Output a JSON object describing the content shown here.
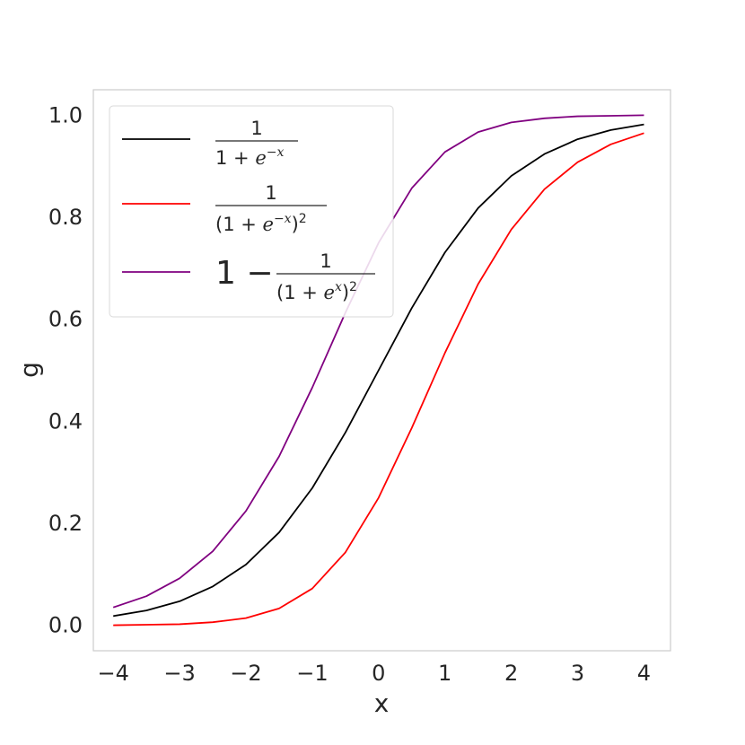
{
  "chart_data": {
    "type": "line",
    "xlabel": "x",
    "ylabel": "g",
    "xlim": [
      -4.3,
      4.4
    ],
    "ylim": [
      -0.05,
      1.05
    ],
    "xticks": [
      -4,
      -3,
      -2,
      -1,
      0,
      1,
      2,
      3,
      4
    ],
    "xtick_labels": [
      "−4",
      "−3",
      "−2",
      "−1",
      "0",
      "1",
      "2",
      "3",
      "4"
    ],
    "yticks": [
      0.0,
      0.2,
      0.4,
      0.6,
      0.8,
      1.0
    ],
    "ytick_labels": [
      "0.0",
      "0.2",
      "0.4",
      "0.6",
      "0.8",
      "1.0"
    ],
    "grid": false,
    "legend_position": "top-left",
    "x": [
      -4.0,
      -3.5,
      -3.0,
      -2.5,
      -2.0,
      -1.5,
      -1.0,
      -0.5,
      0.0,
      0.5,
      1.0,
      1.5,
      2.0,
      2.5,
      3.0,
      3.5,
      4.0
    ],
    "series": [
      {
        "legend_key": "sigmoid",
        "color": "#000000",
        "values": [
          0.018,
          0.029,
          0.047,
          0.076,
          0.119,
          0.182,
          0.269,
          0.378,
          0.5,
          0.622,
          0.731,
          0.818,
          0.881,
          0.924,
          0.953,
          0.971,
          0.982
        ]
      },
      {
        "legend_key": "sigmoid_squared",
        "color": "#ff0000",
        "values": [
          0.0,
          0.001,
          0.002,
          0.006,
          0.014,
          0.033,
          0.072,
          0.143,
          0.25,
          0.387,
          0.534,
          0.669,
          0.776,
          0.855,
          0.908,
          0.943,
          0.965
        ]
      },
      {
        "legend_key": "one_minus",
        "color": "#800080",
        "values": [
          0.035,
          0.057,
          0.092,
          0.145,
          0.224,
          0.331,
          0.466,
          0.613,
          0.75,
          0.857,
          0.928,
          0.967,
          0.986,
          0.994,
          0.998,
          0.999,
          1.0
        ]
      }
    ],
    "legend": {
      "sigmoid": {
        "num": "1",
        "den_a": "1 + ",
        "den_e": "e",
        "den_exp": "−x"
      },
      "sigmoid_squared": {
        "num": "1",
        "den_a": "(1 + ",
        "den_e": "e",
        "den_exp": "−x",
        "den_b": ")",
        "den_pow": "2"
      },
      "one_minus": {
        "prefix": "1 −",
        "num": "1",
        "den_a": "(1 + ",
        "den_e": "e",
        "den_exp": "x",
        "den_b": ")",
        "den_pow": "2"
      }
    }
  }
}
